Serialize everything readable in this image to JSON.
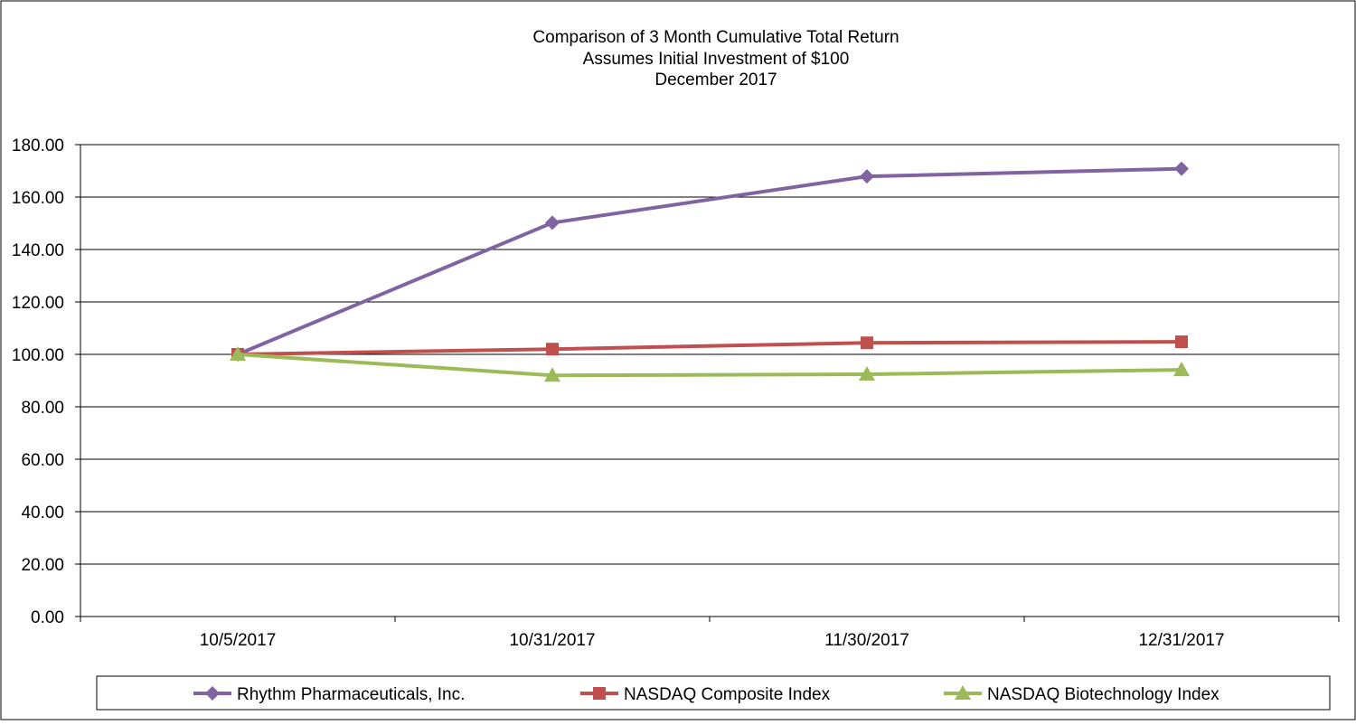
{
  "chart_data": {
    "type": "line",
    "title_lines": [
      "Comparison of 3 Month Cumulative Total Return",
      "Assumes Initial Investment of $100",
      "December 2017"
    ],
    "categories": [
      "10/5/2017",
      "10/31/2017",
      "11/30/2017",
      "12/31/2017"
    ],
    "ylim": [
      0,
      180
    ],
    "ytick_values": [
      0,
      20,
      40,
      60,
      80,
      100,
      120,
      140,
      160,
      180
    ],
    "ytick_labels": [
      "0.00",
      "20.00",
      "40.00",
      "60.00",
      "80.00",
      "100.00",
      "120.00",
      "140.00",
      "160.00",
      "180.00"
    ],
    "grid": true,
    "legend_position": "bottom",
    "series": [
      {
        "name": "Rhythm Pharmaceuticals, Inc.",
        "marker": "diamond",
        "color": "#8064A2",
        "values": [
          100.0,
          150.2,
          167.9,
          170.8
        ]
      },
      {
        "name": "NASDAQ Composite Index",
        "marker": "square",
        "color": "#C0504D",
        "values": [
          100.0,
          102.0,
          104.4,
          104.8
        ]
      },
      {
        "name": "NASDAQ Biotechnology Index",
        "marker": "triangle",
        "color": "#9BBB59",
        "values": [
          100.0,
          92.0,
          92.4,
          94.1
        ]
      }
    ]
  }
}
